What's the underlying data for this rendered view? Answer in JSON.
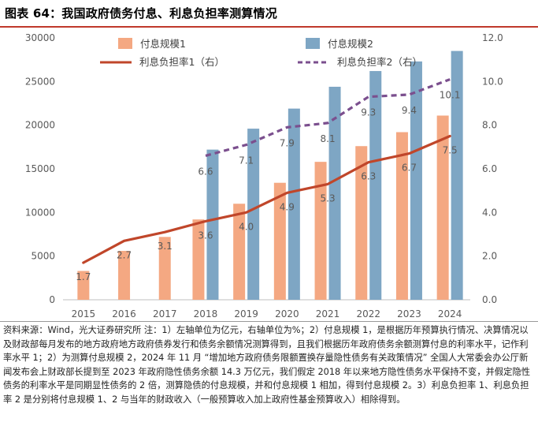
{
  "title": "图表 64：我国政府债务付息、利息负担率测算情况",
  "note": "资料来源：Wind，光大证券研究所 注：1）左轴单位为亿元，右轴单位为%；2）付息规模 1，是根据历年预算执行情况、决算情况以及财政部每月发布的地方政府地方政府债券发行和债务余额情况测算得到，且我们根据历年政府债务余额测算付息的利率水平，记作利率水平 1；2）为测算付息规模 2，2024 年 11 月 “增加地方政府债务限额置换存量隐性债务有关政策情况” 全国人大常委会办公厅新闻发布会上财政部长提到至 2023 年政府隐性债务余额 14.3 万亿元，我们假定 2018 年以来地方隐性债务水平保持不变，并假定隐性债务的利率水平是同期显性债务的 2 倍，测算隐债的付息规模，并和付息规模 1 相加，得到付息规模 2。3）利息负担率 1、利息负担率 2 是分别将付息规模 1、2 与当年的财政收入（一般预算收入加上政府性基金预算收入）相除得到。",
  "chart_data": {
    "type": "bar",
    "title": "我国政府债务付息、利息负担率测算情况",
    "categories": [
      "2015",
      "2016",
      "2017",
      "2018",
      "2019",
      "2020",
      "2021",
      "2022",
      "2023",
      "2024"
    ],
    "y_left": {
      "range": [
        0,
        30000
      ],
      "ticks": [
        "0",
        "5000",
        "10000",
        "15000",
        "20000",
        "25000",
        "30000"
      ]
    },
    "y_right": {
      "range": [
        0,
        12
      ],
      "ticks": [
        "0.0",
        "2.0",
        "4.0",
        "6.0",
        "8.0",
        "10.0",
        "12.0"
      ]
    },
    "series": [
      {
        "name": "付息规模1",
        "kind": "bar",
        "axis": "left",
        "color": "#f4a882",
        "values": [
          3300,
          5600,
          7200,
          9200,
          11000,
          13400,
          15800,
          17600,
          19200,
          21100
        ]
      },
      {
        "name": "付息规模2",
        "kind": "bar",
        "axis": "left",
        "color": "#7ea6c4",
        "values": [
          null,
          null,
          null,
          17200,
          19600,
          21900,
          24400,
          26200,
          27300,
          28500
        ]
      },
      {
        "name": "利息负担率1（右）",
        "kind": "line",
        "axis": "right",
        "color": "#c0462a",
        "dash": false,
        "values": [
          1.7,
          2.7,
          3.1,
          3.6,
          4.0,
          4.9,
          5.3,
          6.3,
          6.7,
          7.5
        ],
        "labels": [
          "1.7",
          "2.7",
          "3.1",
          "3.6",
          "4.0",
          "4.9",
          "5.3",
          "6.3",
          "6.7",
          "7.5"
        ]
      },
      {
        "name": "利息负担率2（右）",
        "kind": "line",
        "axis": "right",
        "color": "#7b4f8e",
        "dash": true,
        "values": [
          null,
          null,
          null,
          6.6,
          7.1,
          7.9,
          8.1,
          9.3,
          9.4,
          10.1
        ],
        "labels": [
          null,
          null,
          null,
          "6.6",
          "7.1",
          "7.9",
          "8.1",
          "9.3",
          "9.4",
          "10.1"
        ]
      }
    ]
  }
}
